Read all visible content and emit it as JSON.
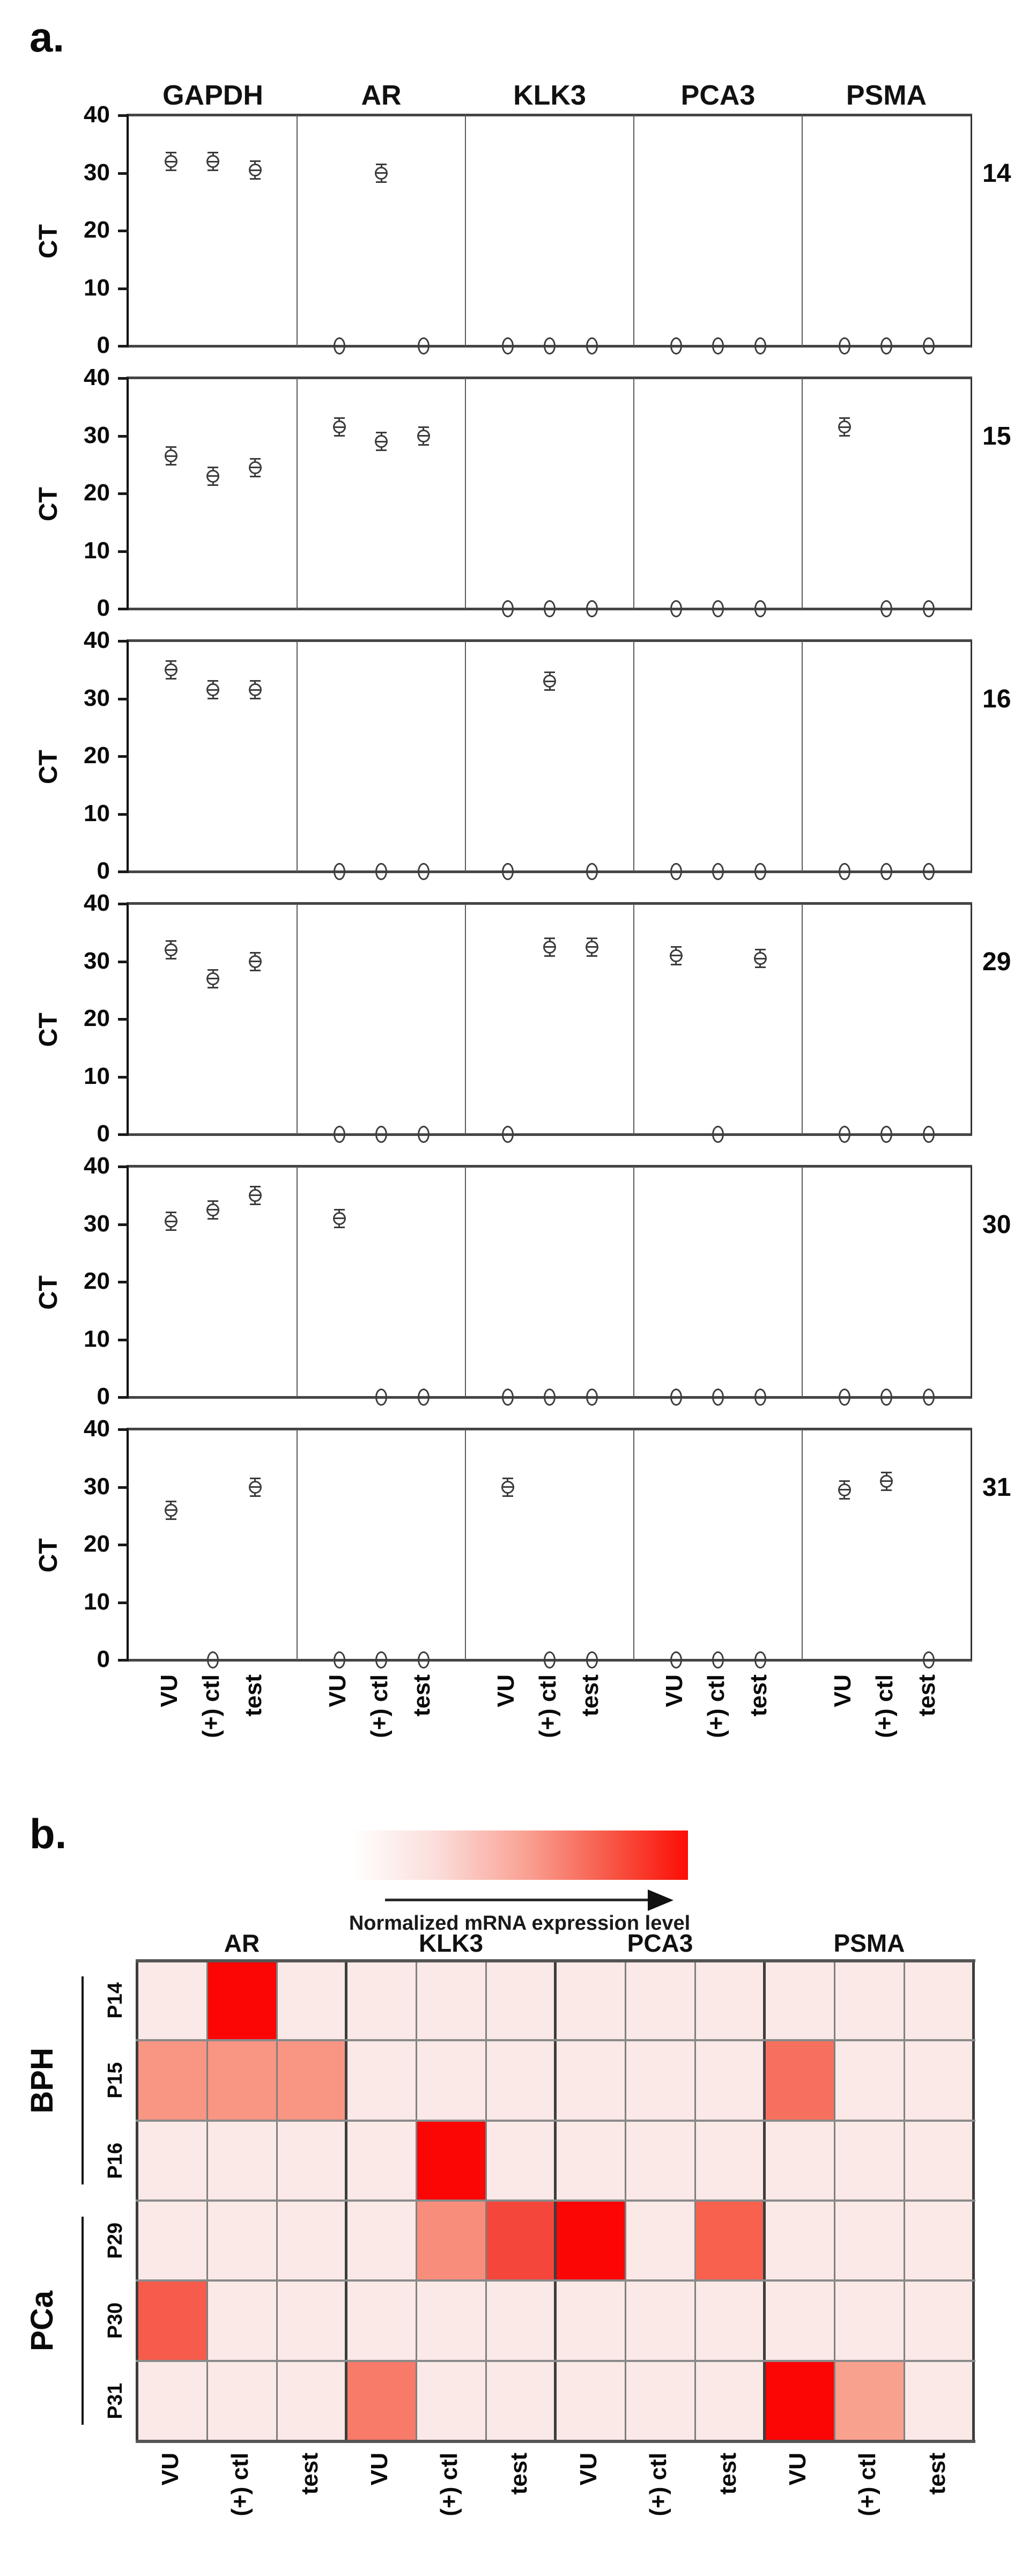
{
  "figure": {
    "panel_a_label": "a.",
    "panel_b_label": "b."
  },
  "chart_data": [
    {
      "type": "scatter",
      "panel": "a",
      "ylabel": "CT",
      "ylim": [
        0,
        40
      ],
      "yticks": [
        40,
        30,
        20,
        10,
        0
      ],
      "grid": false,
      "gene_columns": [
        "GAPDH",
        "AR",
        "KLK3",
        "PCA3",
        "PSMA"
      ],
      "x_categories": [
        "VU",
        "(+) ctl",
        "test"
      ],
      "sample_ids": [
        "14",
        "15",
        "16",
        "29",
        "30",
        "31"
      ],
      "error_bar_ct": 0.8,
      "values_ct": {
        "14": {
          "GAPDH": [
            32,
            32,
            30.5
          ],
          "AR": [
            0,
            30,
            0
          ],
          "KLK3": [
            0,
            0,
            0
          ],
          "PCA3": [
            0,
            0,
            0
          ],
          "PSMA": [
            0,
            0,
            0
          ]
        },
        "15": {
          "GAPDH": [
            26.5,
            23,
            24.5
          ],
          "AR": [
            31.5,
            29,
            30
          ],
          "KLK3": [
            0,
            0,
            0
          ],
          "PCA3": [
            0,
            0,
            0
          ],
          "PSMA": [
            31.5,
            0,
            0
          ]
        },
        "16": {
          "GAPDH": [
            35,
            31.5,
            31.5
          ],
          "AR": [
            0,
            0,
            0
          ],
          "KLK3": [
            0,
            33,
            0
          ],
          "PCA3": [
            0,
            0,
            0
          ],
          "PSMA": [
            0,
            0,
            0
          ]
        },
        "29": {
          "GAPDH": [
            32,
            27,
            30
          ],
          "AR": [
            0,
            0,
            0
          ],
          "KLK3": [
            0,
            32.5,
            32.5
          ],
          "PCA3": [
            31,
            0,
            30.5
          ],
          "PSMA": [
            0,
            0,
            0
          ]
        },
        "30": {
          "GAPDH": [
            30.5,
            32.5,
            35
          ],
          "AR": [
            31,
            0,
            0
          ],
          "KLK3": [
            0,
            0,
            0
          ],
          "PCA3": [
            0,
            0,
            0
          ],
          "PSMA": [
            0,
            0,
            0
          ]
        },
        "31": {
          "GAPDH": [
            26,
            0,
            30
          ],
          "AR": [
            0,
            0,
            0
          ],
          "KLK3": [
            30,
            0,
            0
          ],
          "PCA3": [
            0,
            0,
            0
          ],
          "PSMA": [
            29.5,
            31,
            0
          ]
        }
      }
    },
    {
      "type": "heatmap",
      "panel": "b",
      "colorbar_label": "Normalized mRNA expression level",
      "colorbar_gradient": [
        "#FFFFFF",
        "#FF0000"
      ],
      "gene_columns": [
        "AR",
        "KLK3",
        "PCA3",
        "PSMA"
      ],
      "x_categories": [
        "VU",
        "(+) ctl",
        "test"
      ],
      "row_groups": [
        {
          "label": "BPH",
          "rows": [
            "P14",
            "P15",
            "P16"
          ]
        },
        {
          "label": "PCa",
          "rows": [
            "P29",
            "P30",
            "P31"
          ]
        }
      ],
      "row_labels": [
        "P14",
        "P15",
        "P16",
        "P29",
        "P30",
        "P31"
      ],
      "columns": [
        "AR VU",
        "AR (+) ctl",
        "AR test",
        "KLK3 VU",
        "KLK3 (+) ctl",
        "KLK3 test",
        "PCA3 VU",
        "PCA3 (+) ctl",
        "PCA3 test",
        "PSMA VU",
        "PSMA (+) ctl",
        "PSMA test"
      ],
      "base_color": "#FAE9E7",
      "cell_levels": [
        [
          0,
          1,
          0,
          0,
          0,
          0,
          0,
          0,
          0,
          0,
          0,
          0
        ],
        [
          0.4,
          0.4,
          0.4,
          0,
          0,
          0,
          0,
          0,
          0,
          0.5,
          0,
          0
        ],
        [
          0,
          0,
          0,
          0,
          1,
          0,
          0,
          0,
          0,
          0,
          0,
          0
        ],
        [
          0,
          0,
          0,
          0,
          0.4,
          0.75,
          1,
          0,
          0.6,
          0,
          0,
          0
        ],
        [
          0.62,
          0,
          0,
          0,
          0,
          0,
          0,
          0,
          0,
          0,
          0,
          0
        ],
        [
          0,
          0,
          0,
          0.45,
          0,
          0,
          0,
          0,
          0,
          1,
          0.35,
          0
        ]
      ],
      "cell_colors": [
        [
          "#FAE9E7",
          "#FB0505",
          "#FAE9E7",
          "#FAE9E7",
          "#FAE9E7",
          "#FAE9E7",
          "#FAE9E7",
          "#FAE9E7",
          "#FAE9E7",
          "#FAE9E7",
          "#FAE9E7",
          "#FAE9E7"
        ],
        [
          "#F89583",
          "#F89583",
          "#F89583",
          "#FAE9E7",
          "#FAE9E7",
          "#FAE9E7",
          "#FAE9E7",
          "#FAE9E7",
          "#FAE9E7",
          "#F7705E",
          "#FAE9E7",
          "#FAE9E7"
        ],
        [
          "#FAE9E7",
          "#FAE9E7",
          "#FAE9E7",
          "#FAE9E7",
          "#FB0505",
          "#FAE9E7",
          "#FAE9E7",
          "#FAE9E7",
          "#FAE9E7",
          "#FAE9E7",
          "#FAE9E7",
          "#FAE9E7"
        ],
        [
          "#FAE9E7",
          "#FAE9E7",
          "#FAE9E7",
          "#FAE9E7",
          "#F98D7B",
          "#F5463C",
          "#FB0505",
          "#FAE9E7",
          "#F7614E",
          "#FAE9E7",
          "#FAE9E7",
          "#FAE9E7"
        ],
        [
          "#F65B4B",
          "#FAE9E7",
          "#FAE9E7",
          "#FAE9E7",
          "#FAE9E7",
          "#FAE9E7",
          "#FAE9E7",
          "#FAE9E7",
          "#FAE9E7",
          "#FAE9E7",
          "#FAE9E7",
          "#FAE9E7"
        ],
        [
          "#FAE9E7",
          "#FAE9E7",
          "#FAE9E7",
          "#F87A69",
          "#FAE9E7",
          "#FAE9E7",
          "#FAE9E7",
          "#FAE9E7",
          "#FAE9E7",
          "#FB0505",
          "#F8A18E",
          "#FAE9E7"
        ]
      ]
    }
  ]
}
